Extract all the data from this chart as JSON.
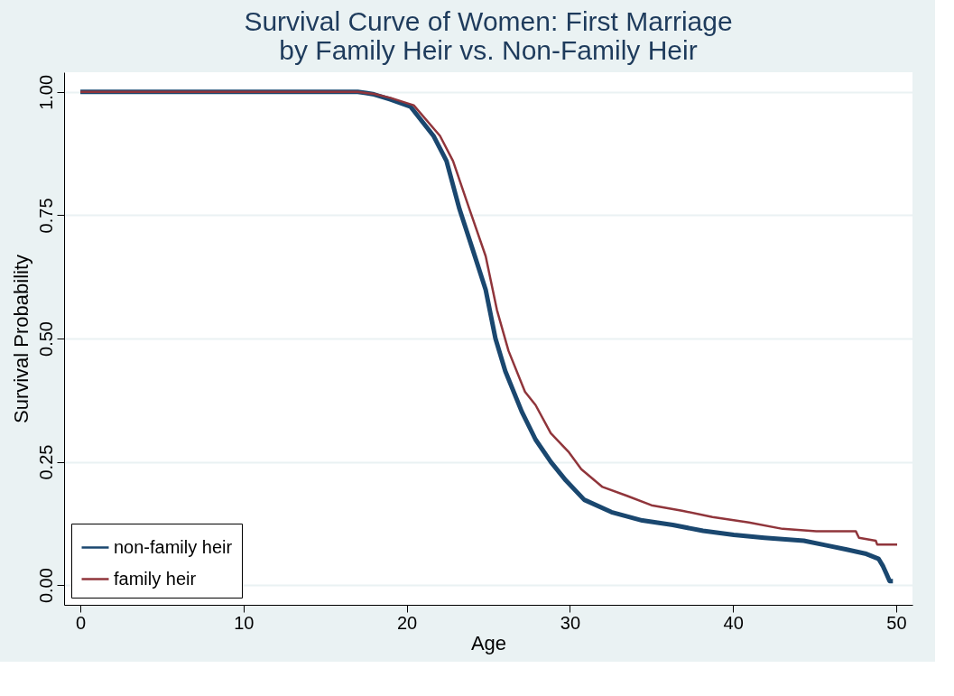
{
  "chart_data": {
    "type": "line",
    "title": "Survival Curve of Women: First Marriage\nby Family Heir vs. Non-Family Heir",
    "xlabel": "Age",
    "ylabel": "Survival Probability",
    "xlim": [
      -1,
      51
    ],
    "ylim": [
      -0.04,
      1.04
    ],
    "xticks": [
      0,
      10,
      20,
      30,
      40,
      50
    ],
    "yticks": [
      {
        "value": 0,
        "label": "0.00"
      },
      {
        "value": 0.25,
        "label": "0.25"
      },
      {
        "value": 0.5,
        "label": "0.50"
      },
      {
        "value": 0.75,
        "label": "0.75"
      },
      {
        "value": 1,
        "label": "1.00"
      }
    ],
    "grid": "y",
    "legend": "bottom left",
    "marker": "none",
    "line_style": "solid",
    "series": [
      {
        "name": "non-family heir",
        "color": "#1a476f",
        "x": [
          0,
          10,
          17,
          17.5,
          18,
          19,
          20.24,
          21.64,
          22.44,
          23.23,
          24.04,
          24.84,
          25.44,
          26.04,
          27.05,
          27.9,
          28.83,
          29.76,
          30.88,
          32.55,
          34.44,
          36.31,
          38.16,
          40.05,
          41.92,
          44.34,
          45.66,
          46.97,
          48.1,
          48.93,
          49.2,
          49.4,
          49.6,
          49.8
        ],
        "values": [
          1.0,
          1.0,
          1.0,
          0.998,
          0.995,
          0.985,
          0.97,
          0.911,
          0.86,
          0.763,
          0.681,
          0.599,
          0.5,
          0.434,
          0.352,
          0.295,
          0.25,
          0.212,
          0.173,
          0.148,
          0.131,
          0.122,
          0.11,
          0.102,
          0.096,
          0.09,
          0.081,
          0.072,
          0.064,
          0.053,
          0.038,
          0.023,
          0.008,
          0.008
        ]
      },
      {
        "name": "family heir",
        "color": "#90353b",
        "x": [
          0,
          10,
          17,
          17.5,
          18,
          19,
          20.43,
          22.04,
          22.84,
          23.84,
          24.84,
          25.53,
          26.24,
          27.25,
          27.9,
          28.83,
          29.95,
          30.7,
          32.0,
          33.5,
          35.0,
          36.87,
          38.74,
          40.97,
          43.04,
          45.1,
          47.53,
          47.72,
          48.75,
          48.84,
          50.06
        ],
        "values": [
          1.0,
          1.0,
          1.0,
          0.998,
          0.996,
          0.988,
          0.973,
          0.911,
          0.86,
          0.763,
          0.667,
          0.558,
          0.475,
          0.392,
          0.365,
          0.308,
          0.269,
          0.235,
          0.199,
          0.181,
          0.162,
          0.151,
          0.138,
          0.127,
          0.114,
          0.109,
          0.109,
          0.096,
          0.09,
          0.082,
          0.082
        ]
      }
    ]
  }
}
